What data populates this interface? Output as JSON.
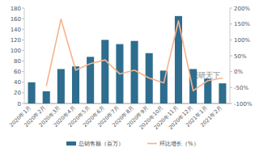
{
  "chart_data": {
    "type": "bar",
    "categories": [
      "2020年1月",
      "2020年2月",
      "2020年3月",
      "2020年4月",
      "2020年5月",
      "2020年6月",
      "2020年7月",
      "2020年8月",
      "2020年9月",
      "2020年10月",
      "2020年11月",
      "2020年12月",
      "2021年1月",
      "2021年2月"
    ],
    "series": [
      {
        "name": "总销售额（百万）",
        "type": "bar",
        "color": "#2e6d8e",
        "values": [
          40,
          23,
          65,
          70,
          88,
          120,
          112,
          118,
          95,
          62,
          165,
          65,
          47,
          38
        ]
      },
      {
        "name": "环比增长（%）",
        "type": "line",
        "axis": "y2",
        "color": "#f6b48a",
        "values": [
          null,
          -45,
          165,
          5,
          25,
          37,
          -7,
          5,
          -20,
          -35,
          160,
          -60,
          -28,
          -20
        ]
      }
    ],
    "ylim": [
      0,
      180
    ],
    "yticks": [
      0,
      20,
      40,
      60,
      80,
      100,
      120,
      140,
      160,
      180
    ],
    "y2lim": [
      -100,
      200
    ],
    "y2ticks": [
      {
        "value": -100,
        "label": "-100%"
      },
      {
        "value": -50,
        "label": "-50%"
      },
      {
        "value": 0,
        "label": "0%"
      },
      {
        "value": 50,
        "label": "50%"
      },
      {
        "value": 100,
        "label": "100%"
      },
      {
        "value": 150,
        "label": "150%"
      },
      {
        "value": 200,
        "label": "200%"
      }
    ],
    "grid": false,
    "legend": "bottom",
    "annotations": [
      "观研天下"
    ]
  }
}
